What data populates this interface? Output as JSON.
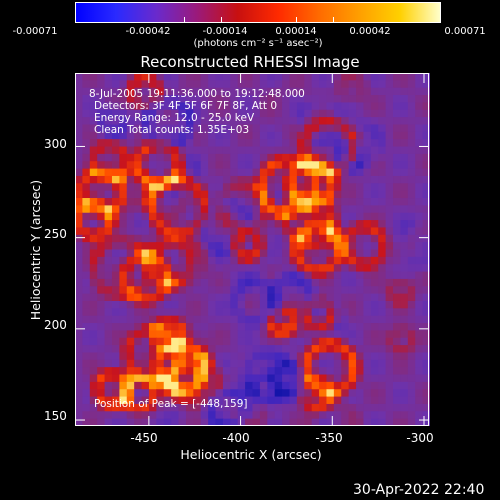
{
  "colorbar": {
    "tick_labels": [
      "-0.00071",
      "-0.00042",
      "-0.00014",
      "0.00014",
      "0.00042",
      "0.00071"
    ],
    "units_label": "(photons cm⁻² s⁻¹ asec⁻²)",
    "colors": [
      "#0000ff",
      "#2a2aff",
      "#6a2acc",
      "#9b1a7a",
      "#c81010",
      "#ff2a00",
      "#ff6a00",
      "#ff9f00",
      "#ffd000",
      "#ffffcc"
    ]
  },
  "plot": {
    "title": "Reconstructed RHESSI Image",
    "x_label": "Heliocentric X (arcsec)",
    "y_label": "Heliocentric Y (arcsec)",
    "x_ticks": [
      "-450",
      "-400",
      "-350",
      "-300"
    ],
    "y_ticks": [
      "300",
      "250",
      "200",
      "150"
    ],
    "x_tick_values": [
      -450,
      -400,
      -350,
      -300
    ],
    "y_tick_values": [
      300,
      250,
      200,
      150
    ],
    "x_range": [
      -490,
      -297
    ],
    "y_range": [
      147,
      340
    ],
    "info_lines": [
      "8-Jul-2005 19:11:36.000 to 19:12:48.000",
      "Detectors: 3F 4F 5F 6F 7F 8F, Att 0",
      "Energy Range: 12.0 - 25.0 keV",
      "Clean     Total counts: 1.35E+03"
    ],
    "peak_label": "Position of Peak = [-448,159]"
  },
  "footer": {
    "timestamp": "30-Apr-2022 22:40"
  }
}
